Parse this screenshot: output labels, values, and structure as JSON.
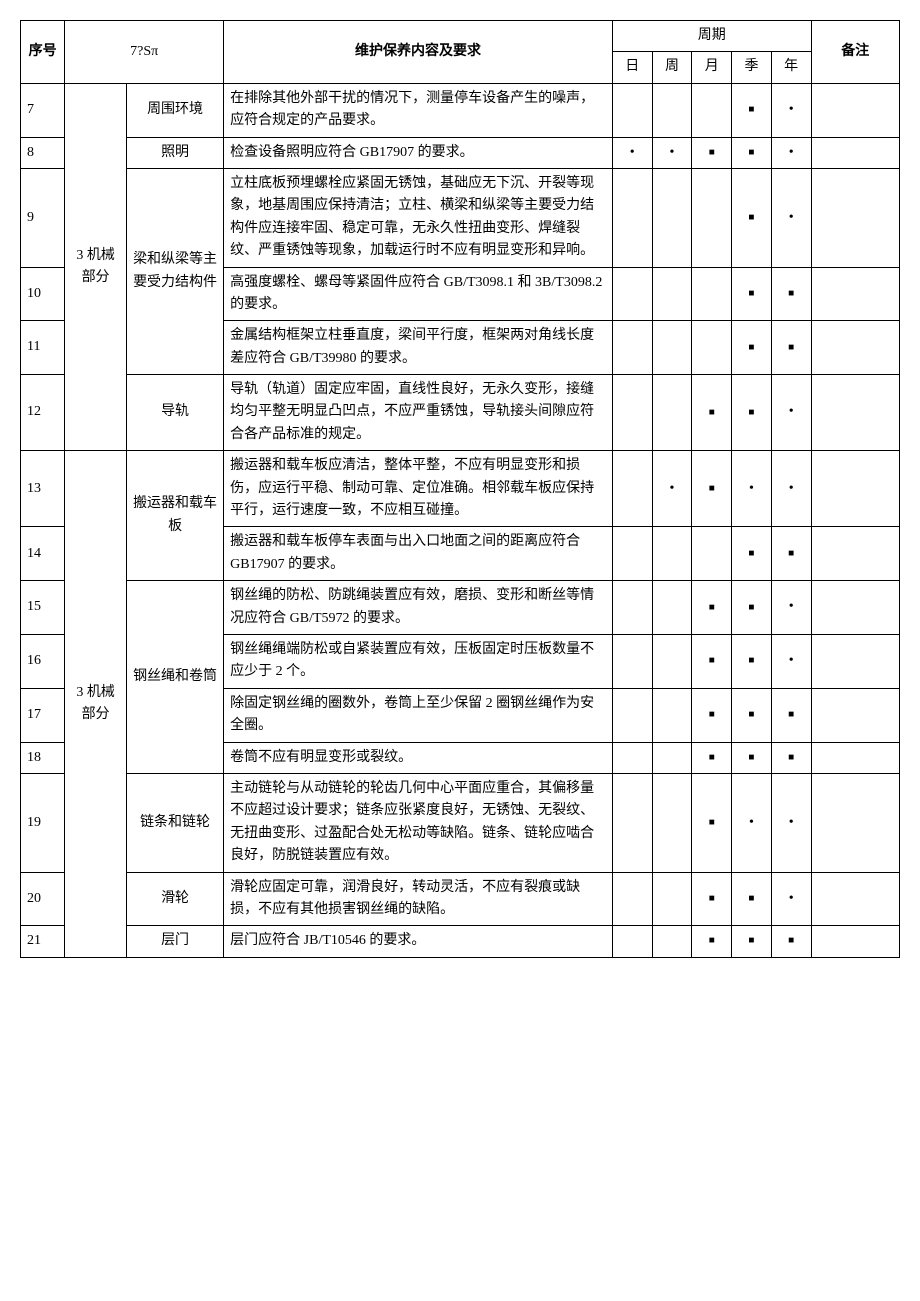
{
  "headers": {
    "seq": "序号",
    "cat2": "7?Sπ",
    "desc": "维护保养内容及要求",
    "period": "周期",
    "note": "备注",
    "day": "日",
    "week": "周",
    "month": "月",
    "quarter": "季",
    "year": "年"
  },
  "categories": {
    "mech1": "3 机械部分",
    "mech2": "3 机械部分"
  },
  "components": {
    "env": "周围环境",
    "light": "照明",
    "beam": "梁和纵梁等主要受力结构件",
    "rail": "导轨",
    "carrier": "搬运器和载车板",
    "wirerope": "钢丝绳和卷筒",
    "chain": "链条和链轮",
    "pulley": "滑轮",
    "door": "层门"
  },
  "rows": [
    {
      "seq": "7",
      "desc": "在排除其他外部干扰的情况下，测量停车设备产生的噪声，应符合规定的产品要求。",
      "d": "",
      "w": "",
      "m": "",
      "q": "■",
      "y": "•"
    },
    {
      "seq": "8",
      "desc": "检查设备照明应符合 GB17907 的要求。",
      "d": "•",
      "w": "•",
      "m": "■",
      "q": "■",
      "y": "•"
    },
    {
      "seq": "9",
      "desc": "立柱底板预埋螺栓应紧固无锈蚀，基础应无下沉、开裂等现象，地基周围应保持清洁；立柱、横梁和纵梁等主要受力结构件应连接牢固、稳定可靠，无永久性扭曲变形、焊缝裂纹、严重锈蚀等现象，加载运行时不应有明显变形和异响。",
      "d": "",
      "w": "",
      "m": "",
      "q": "■",
      "y": "•"
    },
    {
      "seq": "10",
      "desc": "高强度螺栓、螺母等紧固件应符合 GB/T3098.1 和 3B/T3098.2 的要求。",
      "d": "",
      "w": "",
      "m": "",
      "q": "■",
      "y": "■"
    },
    {
      "seq": "11",
      "desc": "金属结构框架立柱垂直度，梁间平行度，框架两对角线长度差应符合 GB/T39980 的要求。",
      "d": "",
      "w": "",
      "m": "",
      "q": "■",
      "y": "■"
    },
    {
      "seq": "12",
      "desc": "导轨（轨道）固定应牢固，直线性良好，无永久变形，接缝均匀平整无明显凸凹点，不应严重锈蚀，导轨接头间隙应符合各产品标准的规定。",
      "d": "",
      "w": "",
      "m": "■",
      "q": "■",
      "y": "•"
    },
    {
      "seq": "13",
      "desc": "搬运器和载车板应清洁，整体平整，不应有明显变形和损伤，应运行平稳、制动可靠、定位准确。相邻载车板应保持平行，运行速度一致，不应相互碰撞。",
      "d": "",
      "w": "•",
      "m": "■",
      "q": "•",
      "y": "•"
    },
    {
      "seq": "14",
      "desc": "搬运器和载车板停车表面与出入口地面之间的距离应符合 GB17907 的要求。",
      "d": "",
      "w": "",
      "m": "",
      "q": "■",
      "y": "■"
    },
    {
      "seq": "15",
      "desc": "钢丝绳的防松、防跳绳装置应有效，磨损、变形和断丝等情况应符合 GB/T5972 的要求。",
      "d": "",
      "w": "",
      "m": "■",
      "q": "■",
      "y": "•"
    },
    {
      "seq": "16",
      "desc": "钢丝绳绳端防松或自紧装置应有效，压板固定时压板数量不应少于 2 个。",
      "d": "",
      "w": "",
      "m": "■",
      "q": "■",
      "y": "•"
    },
    {
      "seq": "17",
      "desc": "除固定钢丝绳的圈数外，卷筒上至少保留 2 圈钢丝绳作为安全圈。",
      "d": "",
      "w": "",
      "m": "■",
      "q": "■",
      "y": "■"
    },
    {
      "seq": "18",
      "desc": "卷筒不应有明显变形或裂纹。",
      "d": "",
      "w": "",
      "m": "■",
      "q": "■",
      "y": "■"
    },
    {
      "seq": "19",
      "desc": "主动链轮与从动链轮的轮齿几何中心平面应重合，其偏移量不应超过设计要求；链条应张紧度良好，无锈蚀、无裂纹、无扭曲变形、过盈配合处无松动等缺陷。链条、链轮应啮合良好，防脱链装置应有效。",
      "d": "",
      "w": "",
      "m": "■",
      "q": "•",
      "y": "•"
    },
    {
      "seq": "20",
      "desc": "滑轮应固定可靠，润滑良好，转动灵活，不应有裂痕或缺损，不应有其他损害钢丝绳的缺陷。",
      "d": "",
      "w": "",
      "m": "■",
      "q": "■",
      "y": "•"
    },
    {
      "seq": "21",
      "desc": "层门应符合 JB/T10546 的要求。",
      "d": "",
      "w": "",
      "m": "■",
      "q": "■",
      "y": "■"
    }
  ]
}
